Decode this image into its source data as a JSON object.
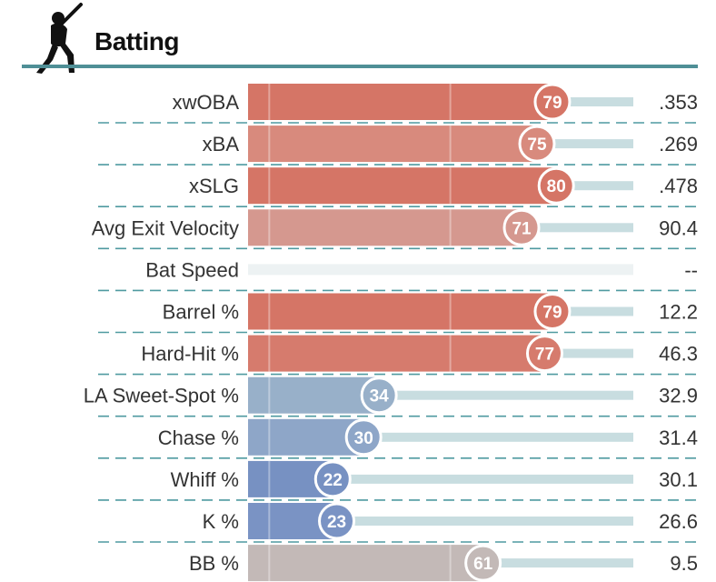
{
  "header": {
    "title": "Batting",
    "icon": "batter-silhouette-icon"
  },
  "colors": {
    "rule": "#4f8f96",
    "track": "#c8dde0",
    "empty_track": "#edf2f3",
    "dash": "#4f9aa0",
    "high": "#d57566",
    "mid_high": "#d5938a",
    "mid": "#c2b8b6",
    "low": "#7c97c6"
  },
  "chart_data": {
    "type": "bar",
    "title": "Batting",
    "xlim": [
      0,
      100
    ],
    "rows": [
      {
        "label": "xwOBA",
        "percentile": 79,
        "value": ".353",
        "color": "#d57566"
      },
      {
        "label": "xBA",
        "percentile": 75,
        "value": ".269",
        "color": "#d88a7d"
      },
      {
        "label": "xSLG",
        "percentile": 80,
        "value": ".478",
        "color": "#d57566"
      },
      {
        "label": "Avg Exit Velocity",
        "percentile": 71,
        "value": "90.4",
        "color": "#d5988f"
      },
      {
        "label": "Bat Speed",
        "percentile": null,
        "value": "--",
        "color": "#edf2f3"
      },
      {
        "label": "Barrel %",
        "percentile": 79,
        "value": "12.2",
        "color": "#d57566"
      },
      {
        "label": "Hard-Hit %",
        "percentile": 77,
        "value": "46.3",
        "color": "#d67b6d"
      },
      {
        "label": "LA Sweet-Spot %",
        "percentile": 34,
        "value": "32.9",
        "color": "#98b0c9"
      },
      {
        "label": "Chase %",
        "percentile": 30,
        "value": "31.4",
        "color": "#8ea6c8"
      },
      {
        "label": "Whiff %",
        "percentile": 22,
        "value": "30.1",
        "color": "#7791c2"
      },
      {
        "label": "K %",
        "percentile": 23,
        "value": "26.6",
        "color": "#7a93c4"
      },
      {
        "label": "BB %",
        "percentile": 61,
        "value": "9.5",
        "color": "#c3b9b7"
      }
    ]
  }
}
